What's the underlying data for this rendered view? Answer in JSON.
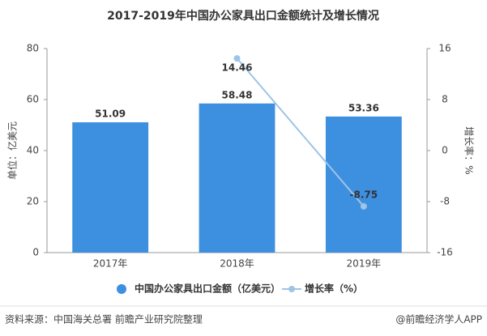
{
  "chart_data": {
    "type": "bar",
    "title": "2017-2019年中国办公家具出口金额统计及增长情况",
    "categories": [
      "2017年",
      "2018年",
      "2019年"
    ],
    "series": [
      {
        "name": "中国办公家具出口金额（亿美元）",
        "type": "bar",
        "color": "#3d8fdf",
        "values": [
          51.09,
          58.48,
          53.36
        ]
      },
      {
        "name": "增长率（%）",
        "type": "line",
        "axis": "y2",
        "color": "#9ec4e6",
        "values": [
          null,
          14.46,
          -8.75
        ]
      }
    ],
    "ylabel": "单位：亿美元",
    "y2label": "增长率：%",
    "ylim": [
      0,
      80
    ],
    "yticks": [
      0,
      20,
      40,
      60,
      80
    ],
    "y2lim": [
      -16,
      16
    ],
    "y2ticks": [
      -16,
      -8,
      0,
      8,
      16
    ],
    "legend": "bottom",
    "source": "资料来源：中国海关总署 前瞻产业研究院整理",
    "credit": "@前瞻经济学人APP"
  }
}
